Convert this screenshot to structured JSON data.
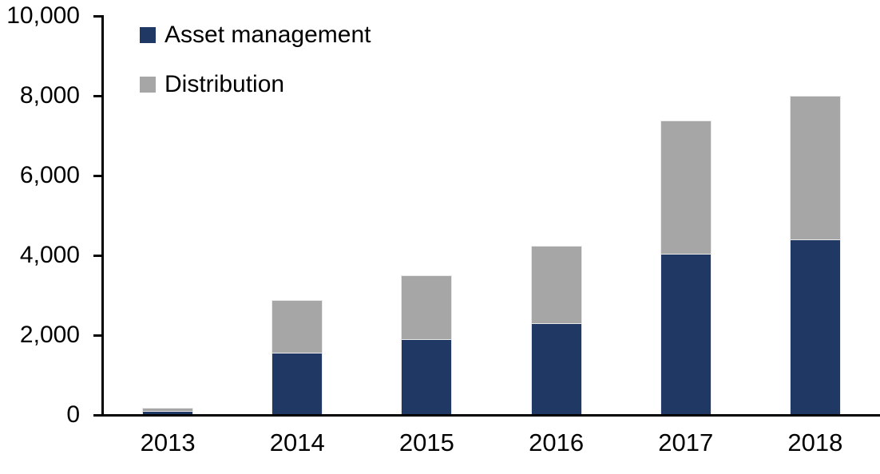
{
  "chart_data": {
    "type": "bar",
    "variant": "stacked-column",
    "title": "",
    "xlabel": "",
    "ylabel": "",
    "categories": [
      "2013",
      "2014",
      "2015",
      "2016",
      "2017",
      "2018"
    ],
    "series": [
      {
        "name": "Asset management",
        "color": "#1F3864",
        "values": [
          100,
          1570,
          1900,
          2300,
          4050,
          4400
        ]
      },
      {
        "name": "Distribution",
        "color": "#A6A6A6",
        "values": [
          90,
          1310,
          1600,
          1950,
          3330,
          3600
        ]
      }
    ],
    "totals": [
      190,
      2880,
      3500,
      4250,
      7380,
      8000
    ],
    "ylim": [
      0,
      10000
    ],
    "yticks": [
      0,
      2000,
      4000,
      6000,
      8000,
      10000
    ],
    "ytick_labels": [
      "0",
      "2,000",
      "4,000",
      "6,000",
      "8,000",
      "10,000"
    ],
    "grid": "off",
    "legend_position": "top-left",
    "axis_color": "#000000",
    "background": "#FFFFFF"
  }
}
